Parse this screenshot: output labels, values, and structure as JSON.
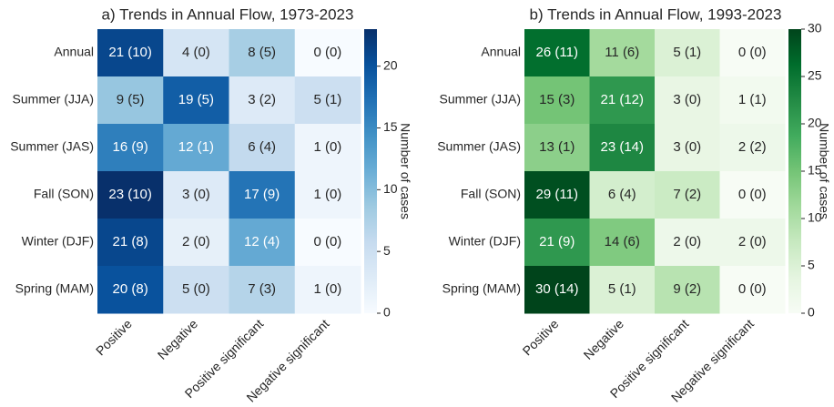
{
  "chart_data": [
    {
      "type": "heatmap",
      "title": "a) Trends in Annual Flow, 1973-2023",
      "x_categories": [
        "Positive",
        "Negative",
        "Positive significant",
        "Negative significant"
      ],
      "y_categories": [
        "Annual",
        "Summer (JJA)",
        "Summer (JAS)",
        "Fall (SON)",
        "Winter (DJF)",
        "Spring (MAM)"
      ],
      "values": [
        [
          21,
          4,
          8,
          0
        ],
        [
          9,
          19,
          3,
          5
        ],
        [
          16,
          12,
          6,
          1
        ],
        [
          23,
          3,
          17,
          1
        ],
        [
          21,
          2,
          12,
          0
        ],
        [
          20,
          5,
          7,
          1
        ]
      ],
      "value_labels": [
        [
          "21 (10)",
          "4 (0)",
          "8 (5)",
          "0 (0)"
        ],
        [
          "9 (5)",
          "19 (5)",
          "3 (2)",
          "5 (1)"
        ],
        [
          "16 (9)",
          "12 (1)",
          "6 (4)",
          "1 (0)"
        ],
        [
          "23 (10)",
          "3 (0)",
          "17 (9)",
          "1 (0)"
        ],
        [
          "21 (8)",
          "2 (0)",
          "12 (4)",
          "0 (0)"
        ],
        [
          "20 (8)",
          "5 (0)",
          "7 (3)",
          "1 (0)"
        ]
      ],
      "colorbar_label": "Number of cases",
      "clim": [
        0,
        23
      ],
      "cticks": [
        0,
        5,
        10,
        15,
        20
      ],
      "colors": [
        "#f7fbff",
        "#deebf7",
        "#c6dbef",
        "#9ecae1",
        "#6baed6",
        "#4292c6",
        "#2171b5",
        "#08519c",
        "#08306b"
      ]
    },
    {
      "type": "heatmap",
      "title": "b) Trends in Annual Flow, 1993-2023",
      "x_categories": [
        "Positive",
        "Negative",
        "Positive significant",
        "Negative significant"
      ],
      "y_categories": [
        "Annual",
        "Summer (JJA)",
        "Summer (JAS)",
        "Fall (SON)",
        "Winter (DJF)",
        "Spring (MAM)"
      ],
      "values": [
        [
          26,
          11,
          5,
          0
        ],
        [
          15,
          21,
          3,
          1
        ],
        [
          13,
          23,
          3,
          2
        ],
        [
          29,
          6,
          7,
          0
        ],
        [
          21,
          14,
          2,
          2
        ],
        [
          30,
          5,
          9,
          0
        ]
      ],
      "value_labels": [
        [
          "26 (11)",
          "11 (6)",
          "5 (1)",
          "0 (0)"
        ],
        [
          "15 (3)",
          "21 (12)",
          "3 (0)",
          "1 (1)"
        ],
        [
          "13 (1)",
          "23 (14)",
          "3 (0)",
          "2 (2)"
        ],
        [
          "29 (11)",
          "6 (4)",
          "7 (2)",
          "0 (0)"
        ],
        [
          "21 (9)",
          "14 (6)",
          "2 (0)",
          "2 (0)"
        ],
        [
          "30 (14)",
          "5 (1)",
          "9 (2)",
          "0 (0)"
        ]
      ],
      "colorbar_label": "Number of cases",
      "clim": [
        0,
        30
      ],
      "cticks": [
        0,
        5,
        10,
        15,
        20,
        25,
        30
      ],
      "colors": [
        "#f7fcf5",
        "#e5f5e0",
        "#c7e9c0",
        "#a1d99b",
        "#74c476",
        "#41ab5d",
        "#238b45",
        "#006d2c",
        "#00441b"
      ]
    }
  ]
}
